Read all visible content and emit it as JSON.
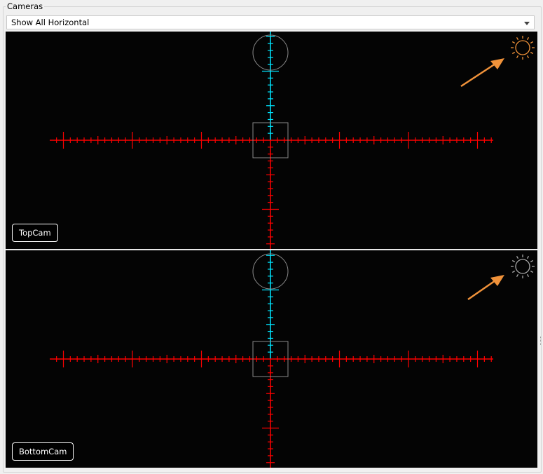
{
  "group": {
    "title": "Cameras"
  },
  "combo": {
    "selected": "Show All Horizontal"
  },
  "views": [
    {
      "label": "TopCam",
      "sun_icon": "brightness-icon",
      "sun_color": "#f0923a"
    },
    {
      "label": "BottomCam",
      "sun_icon": "brightness-icon",
      "sun_color": "#a8a8a8"
    }
  ],
  "colors": {
    "crosshair": "#ff0000",
    "vertical_top": "#00e5ff",
    "annotation_arrow": "#f0923a",
    "overlay": "#8a8a8a"
  }
}
